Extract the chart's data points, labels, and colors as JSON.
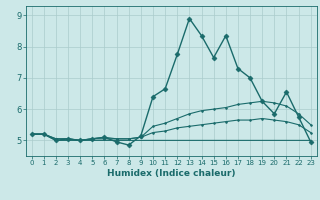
{
  "title": "",
  "xlabel": "Humidex (Indice chaleur)",
  "xlim": [
    -0.5,
    23.5
  ],
  "ylim": [
    4.5,
    9.3
  ],
  "yticks": [
    5,
    6,
    7,
    8,
    9
  ],
  "xticks": [
    0,
    1,
    2,
    3,
    4,
    5,
    6,
    7,
    8,
    9,
    10,
    11,
    12,
    13,
    14,
    15,
    16,
    17,
    18,
    19,
    20,
    21,
    22,
    23
  ],
  "bg_color": "#cce8e8",
  "grid_color": "#aacccc",
  "line_color": "#1a6b6b",
  "lines": [
    {
      "x": [
        0,
        1,
        2,
        3,
        4,
        5,
        6,
        7,
        8,
        9,
        10,
        11,
        12,
        13,
        14,
        15,
        16,
        17,
        18,
        19,
        20,
        21,
        22,
        23
      ],
      "y": [
        5.2,
        5.2,
        5.0,
        5.05,
        5.0,
        5.05,
        5.1,
        4.95,
        4.85,
        5.15,
        6.4,
        6.65,
        7.75,
        8.9,
        8.35,
        7.65,
        8.35,
        7.3,
        7.0,
        6.25,
        5.85,
        6.55,
        5.75,
        4.95
      ],
      "marker": "D",
      "markersize": 2.5,
      "lw": 1.0
    },
    {
      "x": [
        0,
        1,
        2,
        3,
        4,
        5,
        6,
        7,
        8,
        9,
        10,
        11,
        12,
        13,
        14,
        15,
        16,
        17,
        18,
        19,
        20,
        21,
        22,
        23
      ],
      "y": [
        5.2,
        5.2,
        5.05,
        5.05,
        5.0,
        5.05,
        5.1,
        5.05,
        5.05,
        5.1,
        5.45,
        5.55,
        5.7,
        5.85,
        5.95,
        6.0,
        6.05,
        6.15,
        6.2,
        6.25,
        6.2,
        6.1,
        5.85,
        5.5
      ],
      "marker": ".",
      "markersize": 2.5,
      "lw": 0.8
    },
    {
      "x": [
        0,
        1,
        2,
        3,
        4,
        5,
        6,
        7,
        8,
        9,
        10,
        11,
        12,
        13,
        14,
        15,
        16,
        17,
        18,
        19,
        20,
        21,
        22,
        23
      ],
      "y": [
        5.2,
        5.2,
        5.05,
        5.05,
        5.0,
        5.05,
        5.05,
        5.05,
        5.05,
        5.1,
        5.25,
        5.3,
        5.4,
        5.45,
        5.5,
        5.55,
        5.6,
        5.65,
        5.65,
        5.7,
        5.65,
        5.6,
        5.5,
        5.25
      ],
      "marker": ".",
      "markersize": 2.5,
      "lw": 0.8
    },
    {
      "x": [
        0,
        1,
        2,
        3,
        4,
        5,
        6,
        7,
        8,
        9,
        10,
        11,
        12,
        13,
        14,
        15,
        16,
        17,
        18,
        19,
        20,
        21,
        22,
        23
      ],
      "y": [
        5.2,
        5.2,
        5.0,
        5.0,
        5.0,
        5.0,
        5.0,
        5.0,
        5.0,
        5.0,
        5.0,
        5.0,
        5.0,
        5.0,
        5.0,
        5.0,
        5.0,
        5.0,
        5.0,
        5.0,
        5.0,
        5.0,
        5.0,
        5.0
      ],
      "marker": null,
      "markersize": 0,
      "lw": 0.8
    }
  ]
}
